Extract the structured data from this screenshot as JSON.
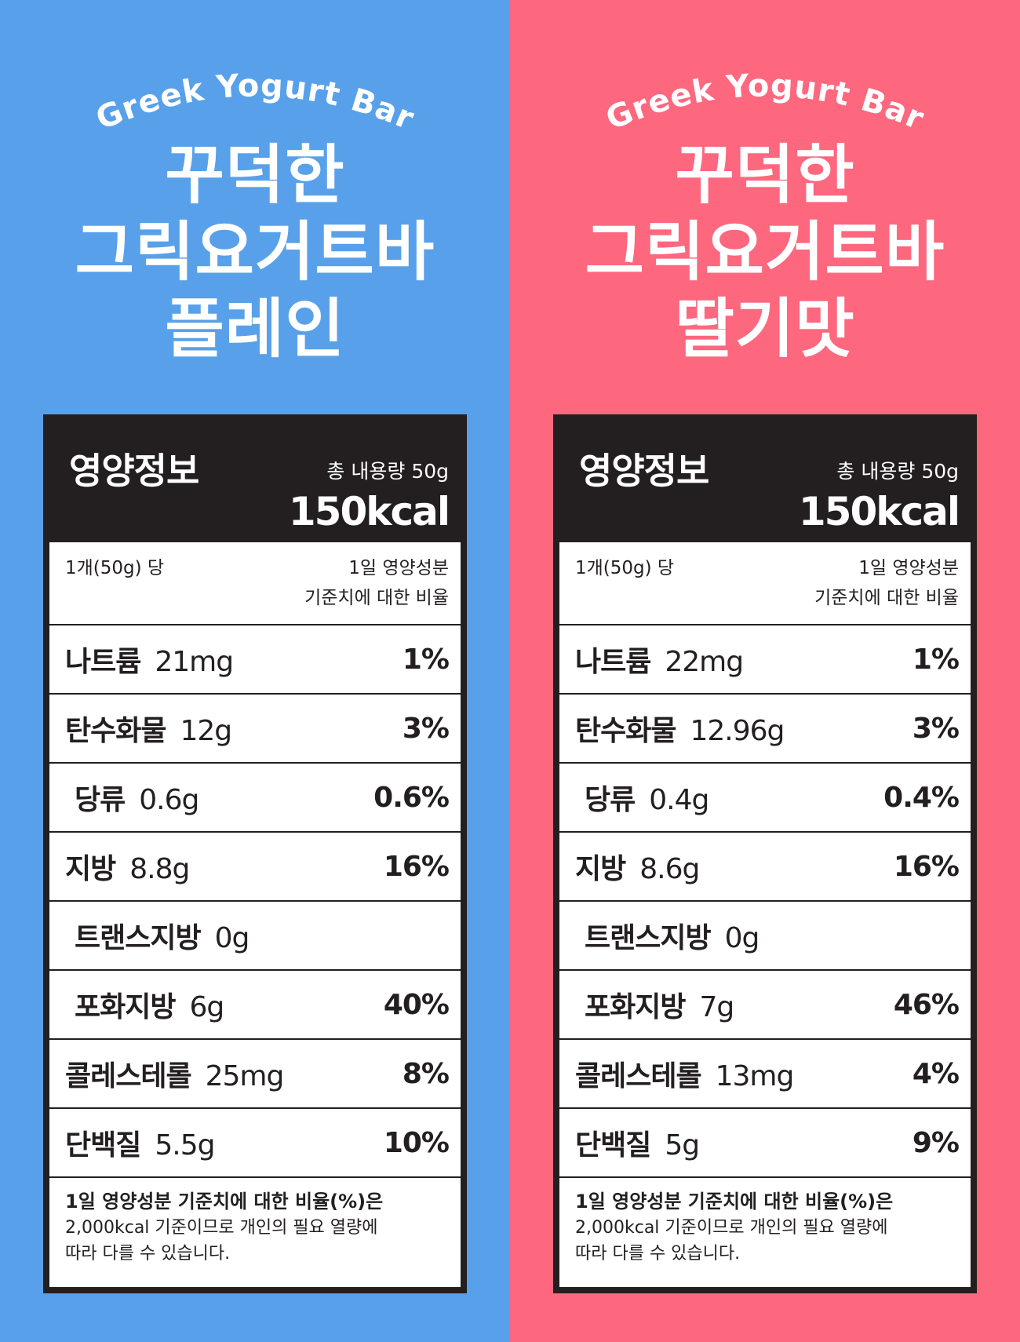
{
  "panels": [
    {
      "brand": "Greek Yogurt Bar",
      "title_lines": [
        "꾸덕한",
        "그릭요거트바",
        "플레인"
      ],
      "colors": {
        "background": "#58a1ea"
      },
      "label": {
        "heading": "영양정보",
        "total": "총 내용량 50g",
        "kcal": "150kcal",
        "per_serving": "1개(50g) 당",
        "ratio_line1": "1일 영양성분",
        "ratio_line2": "기준치에 대한 비율",
        "rows": [
          {
            "name": "나트륨",
            "amount": "21mg",
            "pct": "1%"
          },
          {
            "name": "탄수화물",
            "amount": "12g",
            "pct": "3%"
          },
          {
            "name": "당류",
            "amount": "0.6g",
            "pct": "0.6%"
          },
          {
            "name": "지방",
            "amount": "8.8g",
            "pct": "16%"
          },
          {
            "name": "트랜스지방",
            "amount": "0g",
            "pct": ""
          },
          {
            "name": "포화지방",
            "amount": "6g",
            "pct": "40%"
          },
          {
            "name": "콜레스테롤",
            "amount": "25mg",
            "pct": "8%"
          },
          {
            "name": "단백질",
            "amount": "5.5g",
            "pct": "10%"
          }
        ],
        "footnote_bold": "1일 영양성분 기준치에 대한 비율(%)은",
        "footnote_line2": "2,000kcal 기준이므로 개인의 필요 열량에",
        "footnote_line3": "따라 다를 수 있습니다."
      }
    },
    {
      "brand": "Greek Yogurt Bar",
      "title_lines": [
        "꾸덕한",
        "그릭요거트바",
        "딸기맛"
      ],
      "colors": {
        "background": "#fd687f"
      },
      "label": {
        "heading": "영양정보",
        "total": "총 내용량 50g",
        "kcal": "150kcal",
        "per_serving": "1개(50g) 당",
        "ratio_line1": "1일 영양성분",
        "ratio_line2": "기준치에 대한 비율",
        "rows": [
          {
            "name": "나트륨",
            "amount": "22mg",
            "pct": "1%"
          },
          {
            "name": "탄수화물",
            "amount": "12.96g",
            "pct": "3%"
          },
          {
            "name": "당류",
            "amount": "0.4g",
            "pct": "0.4%"
          },
          {
            "name": "지방",
            "amount": "8.6g",
            "pct": "16%"
          },
          {
            "name": "트랜스지방",
            "amount": "0g",
            "pct": ""
          },
          {
            "name": "포화지방",
            "amount": "7g",
            "pct": "46%"
          },
          {
            "name": "콜레스테롤",
            "amount": "13mg",
            "pct": "4%"
          },
          {
            "name": "단백질",
            "amount": "5g",
            "pct": "9%"
          }
        ],
        "footnote_bold": "1일 영양성분 기준치에 대한 비율(%)은",
        "footnote_line2": "2,000kcal 기준이므로 개인의 필요 열량에",
        "footnote_line3": "따라 다를 수 있습니다."
      }
    }
  ]
}
